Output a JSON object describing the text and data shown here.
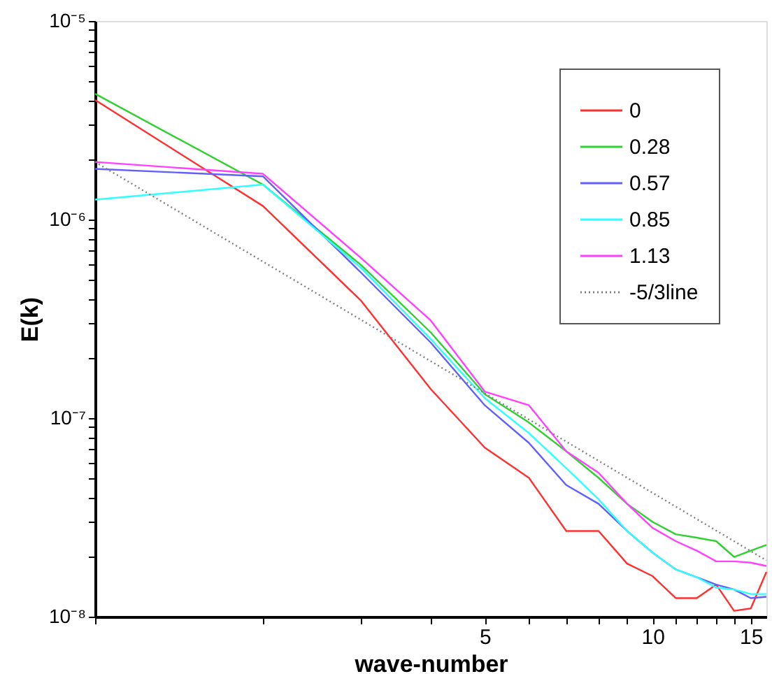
{
  "chart_data": {
    "type": "line",
    "xlabel": "wave-number",
    "ylabel": "E(k)",
    "log": "xy",
    "grid": false,
    "legend": "top right",
    "marker": "none",
    "x": [
      1,
      2,
      3,
      4,
      5,
      6,
      7,
      8,
      9,
      10,
      11,
      12,
      13,
      14,
      15,
      16
    ],
    "xlim": [
      1,
      16
    ],
    "xticks": [
      {
        "value": 1,
        "label": null
      },
      {
        "value": 2,
        "label": null
      },
      {
        "value": 3,
        "label": null
      },
      {
        "value": 4,
        "label": null
      },
      5,
      {
        "value": 6,
        "label": null
      },
      {
        "value": 7,
        "label": null
      },
      {
        "value": 8,
        "label": null
      },
      {
        "value": 9,
        "label": null
      },
      10,
      {
        "value": 11,
        "label": null
      },
      {
        "value": 12,
        "label": null
      },
      {
        "value": 13,
        "label": null
      },
      {
        "value": 14,
        "label": null
      },
      15
    ],
    "ylim": [
      1e-08,
      1e-05
    ],
    "yticks": [
      {
        "value": 1e-08,
        "label": "10⁻⁸"
      },
      {
        "value": 2e-08,
        "label": null
      },
      {
        "value": 3e-08,
        "label": null
      },
      {
        "value": 4e-08,
        "label": null
      },
      {
        "value": 5e-08,
        "label": null
      },
      {
        "value": 6e-08,
        "label": null
      },
      {
        "value": 7e-08,
        "label": null
      },
      {
        "value": 8e-08,
        "label": null
      },
      {
        "value": 9e-08,
        "label": null
      },
      {
        "value": 1e-07,
        "label": "10⁻⁷"
      },
      {
        "value": 2e-07,
        "label": null
      },
      {
        "value": 3e-07,
        "label": null
      },
      {
        "value": 4e-07,
        "label": null
      },
      {
        "value": 5e-07,
        "label": null
      },
      {
        "value": 6e-07,
        "label": null
      },
      {
        "value": 7e-07,
        "label": null
      },
      {
        "value": 8e-07,
        "label": null
      },
      {
        "value": 9e-07,
        "label": null
      },
      {
        "value": 1e-06,
        "label": "10⁻⁶"
      },
      {
        "value": 2e-06,
        "label": null
      },
      {
        "value": 3e-06,
        "label": null
      },
      {
        "value": 4e-06,
        "label": null
      },
      {
        "value": 5e-06,
        "label": null
      },
      {
        "value": 6e-06,
        "label": null
      },
      {
        "value": 7e-06,
        "label": null
      },
      {
        "value": 8e-06,
        "label": null
      },
      {
        "value": 9e-06,
        "label": null
      },
      {
        "value": 1e-05,
        "label": "10⁻⁵"
      }
    ],
    "series": [
      {
        "name": "0",
        "color": "#ff3030",
        "line_style": "solid",
        "values": [
          4e-06,
          1.17e-06,
          3.9e-07,
          1.4e-07,
          7.1e-08,
          5e-08,
          2.7e-08,
          2.7e-08,
          1.85e-08,
          1.6e-08,
          1.24e-08,
          1.24e-08,
          1.45e-08,
          1.07e-08,
          1.1e-08,
          1.68e-08
        ]
      },
      {
        "name": "0.28",
        "color": "#30d030",
        "line_style": "solid",
        "values": [
          4.3e-06,
          1.5e-06,
          5.9e-07,
          2.7e-07,
          1.32e-07,
          9.5e-08,
          6.8e-08,
          5e-08,
          3.7e-08,
          3e-08,
          2.6e-08,
          2.5e-08,
          2.4e-08,
          2e-08,
          2.15e-08,
          2.3e-08
        ]
      },
      {
        "name": "0.57",
        "color": "#6060ff",
        "line_style": "solid",
        "values": [
          1.8e-06,
          1.65e-06,
          5.4e-07,
          2.4e-07,
          1.16e-07,
          7.5e-08,
          4.6e-08,
          3.7e-08,
          2.7e-08,
          2.1e-08,
          1.73e-08,
          1.58e-08,
          1.45e-08,
          1.37e-08,
          1.24e-08,
          1.26e-08
        ]
      },
      {
        "name": "0.85",
        "color": "#30ffff",
        "line_style": "solid",
        "values": [
          1.26e-06,
          1.5e-06,
          5.7e-07,
          2.5e-07,
          1.26e-07,
          8.4e-08,
          5.6e-08,
          3.9e-08,
          2.7e-08,
          2.1e-08,
          1.73e-08,
          1.58e-08,
          1.4e-08,
          1.37e-08,
          1.3e-08,
          1.3e-08
        ]
      },
      {
        "name": "1.13",
        "color": "#ff40ff",
        "line_style": "solid",
        "values": [
          1.95e-06,
          1.7e-06,
          6.4e-07,
          3.1e-07,
          1.36e-07,
          1.16e-07,
          6.8e-08,
          5.3e-08,
          3.7e-08,
          2.8e-08,
          2.4e-08,
          2.15e-08,
          1.9e-08,
          1.9e-08,
          1.87e-08,
          1.8e-08
        ]
      },
      {
        "name": "-5/3line",
        "color": "#808080",
        "line_style": "dotted",
        "x": [
          1,
          16
        ],
        "values": [
          1.95e-06,
          1.92e-08
        ]
      }
    ]
  }
}
